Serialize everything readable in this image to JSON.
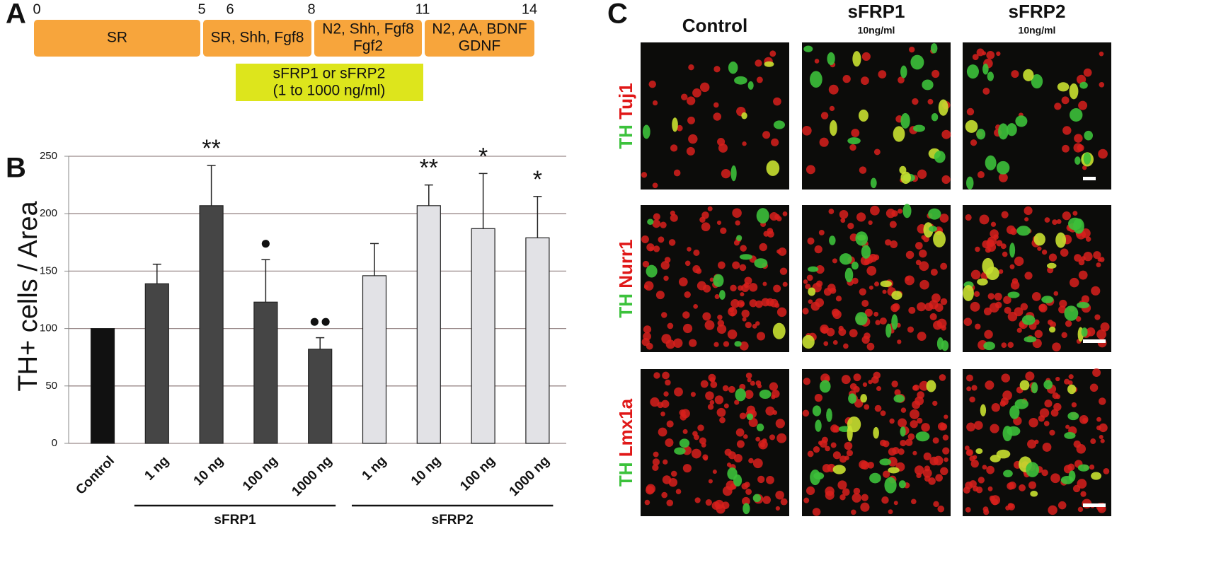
{
  "panel_a": {
    "label": "A",
    "timeline_ticks": [
      "0",
      "5",
      "6",
      "8",
      "11",
      "14"
    ],
    "stages": [
      [
        "SR"
      ],
      [
        "SR, Shh, Fgf8"
      ],
      [
        "N2, Shh, Fgf8",
        "Fgf2"
      ],
      [
        "N2, AA, BDNF",
        "GDNF"
      ]
    ],
    "treatment": [
      "sFRP1 or sFRP2",
      "(1 to 1000 ng/ml)"
    ]
  },
  "chart_data": {
    "type": "bar",
    "label": "B",
    "ylabel": "TH+ cells / Area",
    "categories": [
      "Control",
      "1 ng",
      "10 ng",
      "100 ng",
      "1000 ng",
      "1 ng",
      "10 ng",
      "100 ng",
      "1000 ng"
    ],
    "values": [
      100,
      139,
      207,
      123,
      82,
      146,
      207,
      187,
      179
    ],
    "errors": [
      null,
      17,
      35,
      37,
      10,
      28,
      18,
      48,
      36
    ],
    "colors": [
      "#111111",
      "#454545",
      "#454545",
      "#454545",
      "#454545",
      "#e2e2e6",
      "#e2e2e6",
      "#e2e2e6",
      "#e2e2e6"
    ],
    "annotations": [
      null,
      null,
      "**",
      "●",
      "●●",
      null,
      "**",
      "*",
      "*"
    ],
    "groups": [
      {
        "name": "sFRP1",
        "members": [
          1,
          4
        ]
      },
      {
        "name": "sFRP2",
        "members": [
          5,
          8
        ]
      }
    ],
    "ylim": [
      0,
      250
    ],
    "yticks": [
      0,
      50,
      100,
      150,
      200,
      250
    ],
    "grid": true
  },
  "panel_c": {
    "label": "C",
    "columns": [
      {
        "name": "Control"
      },
      {
        "name": "sFRP1",
        "sub": "10ng/ml"
      },
      {
        "name": "sFRP2",
        "sub": "10ng/ml"
      }
    ],
    "rows": [
      {
        "green": "TH",
        "red": "Tuj1"
      },
      {
        "green": "TH",
        "red": "Nurr1"
      },
      {
        "green": "TH",
        "red": "Lmx1a"
      }
    ]
  }
}
